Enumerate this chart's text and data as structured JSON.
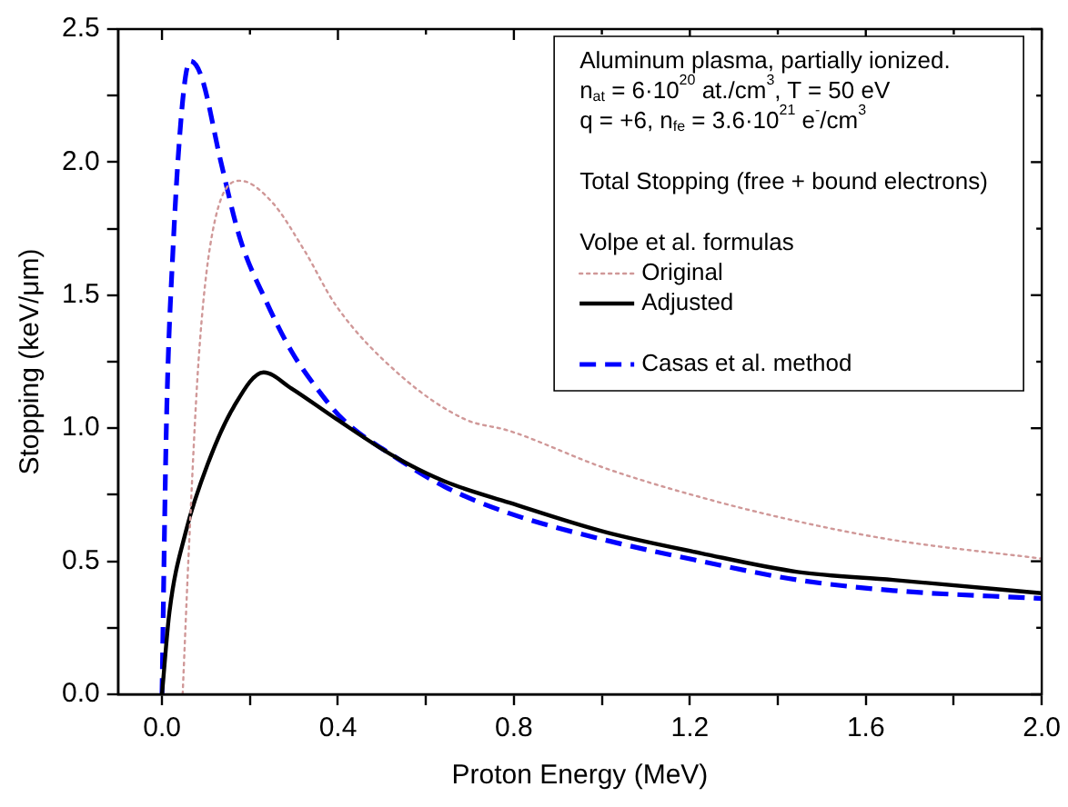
{
  "chart_data": {
    "type": "line",
    "xlabel": "Proton Energy (MeV)",
    "ylabel": "Stopping (keV/μm)",
    "xlim": [
      -0.1,
      2.0
    ],
    "ylim": [
      0,
      2.5
    ],
    "xticks": [
      {
        "value": 0,
        "label": "0.0"
      },
      {
        "value": 0.2,
        "label": null
      },
      {
        "value": 0.4,
        "label": "0.4"
      },
      {
        "value": 0.6,
        "label": null
      },
      {
        "value": 0.8,
        "label": "0.8"
      },
      {
        "value": 1.0,
        "label": null
      },
      {
        "value": 1.2,
        "label": "1.2"
      },
      {
        "value": 1.4,
        "label": null
      },
      {
        "value": 1.6,
        "label": "1.6"
      },
      {
        "value": 1.8,
        "label": null
      },
      {
        "value": 2.0,
        "label": "2.0"
      }
    ],
    "yticks": [
      {
        "value": 0,
        "label": "0.0"
      },
      {
        "value": 0.25,
        "label": null
      },
      {
        "value": 0.5,
        "label": "0.5"
      },
      {
        "value": 0.75,
        "label": null
      },
      {
        "value": 1.0,
        "label": "1.0"
      },
      {
        "value": 1.25,
        "label": null
      },
      {
        "value": 1.5,
        "label": "1.5"
      },
      {
        "value": 1.75,
        "label": null
      },
      {
        "value": 2.0,
        "label": "2.0"
      },
      {
        "value": 2.25,
        "label": null
      },
      {
        "value": 2.5,
        "label": "2.5"
      }
    ],
    "annotations": [
      "Aluminum plasma, partially ionized.",
      "n$_{at}$ = 6·10$^{20}$ at./cm$^{3}$, T = 50 eV",
      "q = +6, n$_{fe}$ = 3.6·10$^{21}$ e$^{-}$/cm$^{3}$",
      "Total Stopping (free + bound electrons)",
      "Volpe et al. formulas"
    ],
    "legend": "top right",
    "marker": "none",
    "series": [
      {
        "name": "Original",
        "color": "#d09898",
        "line_style": "dotted",
        "x": [
          0.047,
          0.061,
          0.083,
          0.112,
          0.178,
          0.25,
          0.323,
          0.396,
          0.541,
          0.687,
          0.79,
          1.007,
          1.226,
          1.445,
          1.662,
          2.0
        ],
        "values": [
          0,
          0.54,
          1.25,
          1.71,
          1.93,
          1.85,
          1.67,
          1.46,
          1.2,
          1.035,
          0.99,
          0.85,
          0.74,
          0.65,
          0.58,
          0.51
        ]
      },
      {
        "name": "Adjusted",
        "color": "#000000",
        "line_style": "solid",
        "x": [
          0,
          0.017,
          0.054,
          0.105,
          0.163,
          0.231,
          0.294,
          0.396,
          0.527,
          0.643,
          0.79,
          1.007,
          1.226,
          1.445,
          1.662,
          2.0
        ],
        "values": [
          0,
          0.31,
          0.61,
          0.87,
          1.08,
          1.21,
          1.15,
          1.035,
          0.895,
          0.8,
          0.72,
          0.61,
          0.53,
          0.46,
          0.43,
          0.38
        ]
      },
      {
        "name": "Casas et al. method",
        "color": "#0000ff",
        "line_style": "dashed",
        "x": [
          0,
          0.01,
          0.025,
          0.047,
          0.064,
          0.09,
          0.134,
          0.178,
          0.236,
          0.294,
          0.352,
          0.41,
          0.527,
          0.643,
          0.79,
          1.007,
          1.226,
          1.445,
          1.662,
          2.0
        ],
        "values": [
          0,
          1.01,
          1.67,
          2.23,
          2.38,
          2.32,
          2.0,
          1.71,
          1.48,
          1.29,
          1.15,
          1.035,
          0.895,
          0.78,
          0.68,
          0.58,
          0.5,
          0.43,
          0.39,
          0.36
        ]
      }
    ]
  }
}
